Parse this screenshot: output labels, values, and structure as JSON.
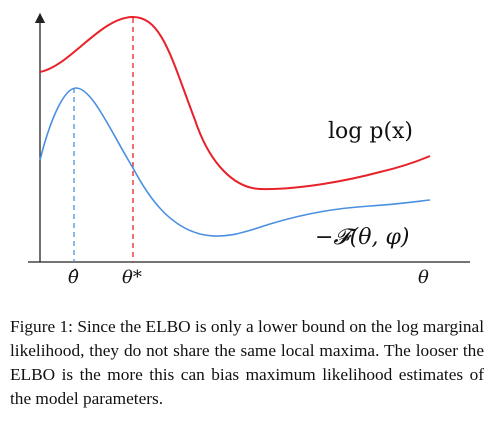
{
  "figure": {
    "labels": {
      "log_p_x": "log p(x)",
      "neg_F": "−𝓕(θ, φ)",
      "theta_hat": "θ̂",
      "theta_star": "θ*",
      "theta": "θ"
    },
    "colors": {
      "log_p_x_curve": "#e8222a",
      "neg_F_curve": "#4a8fe0",
      "theta_star_guide": "#e8222a",
      "theta_hat_guide": "#4a8fe0",
      "axes": "#222222"
    }
  },
  "chart_data": {
    "type": "line",
    "title": "",
    "xlabel": "θ",
    "ylabel": "",
    "x_ticks": [
      "θ̂",
      "θ*"
    ],
    "series": [
      {
        "name": "log p(x)"
      },
      {
        "name": "−𝓕(θ, φ)"
      }
    ],
    "annotations": [
      "θ̂: maximum of −𝓕(θ, φ)",
      "θ*: maximum of log p(x)"
    ],
    "grid": false
  },
  "caption": {
    "label": "Figure 1:",
    "text": "Since the ELBO is only a lower bound on the log marginal likelihood, they do not share the same local maxima. The looser the ELBO is the more this can bias maximum likelihood estimates of the model parameters."
  }
}
